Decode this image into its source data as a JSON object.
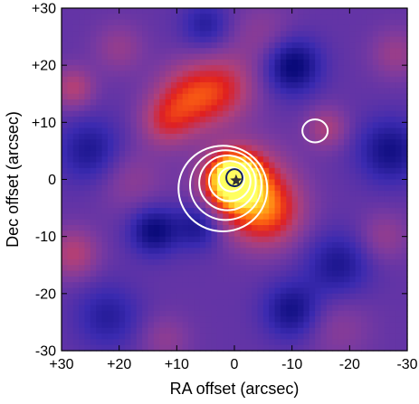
{
  "chart_data": {
    "type": "heatmap",
    "title": "",
    "xlabel": "RA offset (arcsec)",
    "ylabel": "Dec offset (arcsec)",
    "xlim": [
      30,
      -30
    ],
    "ylim": [
      -30,
      30
    ],
    "x_ticks": [
      30,
      20,
      10,
      0,
      -10,
      -20,
      -30
    ],
    "x_tick_labels": [
      "+30",
      "+20",
      "+10",
      "0",
      "-10",
      "-20",
      "-30"
    ],
    "y_ticks": [
      -30,
      -20,
      -10,
      0,
      10,
      20,
      30
    ],
    "y_tick_labels": [
      "-30",
      "-20",
      "-10",
      "0",
      "+10",
      "+20",
      "+30"
    ],
    "colormap": [
      "#0a0a7a",
      "#3a2ab0",
      "#7a3aa0",
      "#b0407a",
      "#e02020",
      "#ff6a10",
      "#ffc020",
      "#ffff60"
    ],
    "intensity_blobs": [
      {
        "x": 0,
        "y": 0,
        "amp": 3.2,
        "sigma": 2.8
      },
      {
        "x": -2,
        "y": -2,
        "amp": 1.4,
        "sigma": 5
      },
      {
        "x": 8,
        "y": 14,
        "amp": 1.1,
        "sigma": 4
      },
      {
        "x": 2,
        "y": 16,
        "amp": 0.9,
        "sigma": 4
      },
      {
        "x": 12,
        "y": 10,
        "amp": 0.7,
        "sigma": 3
      },
      {
        "x": -6,
        "y": -6,
        "amp": 1.0,
        "sigma": 4
      },
      {
        "x": -16,
        "y": 9,
        "amp": 0.6,
        "sigma": 2.5
      },
      {
        "x": 28,
        "y": -13,
        "amp": 0.7,
        "sigma": 3
      },
      {
        "x": 28,
        "y": 16,
        "amp": 0.7,
        "sigma": 2.5
      },
      {
        "x": 20,
        "y": 23,
        "amp": 0.4,
        "sigma": 3
      },
      {
        "x": -28,
        "y": 22,
        "amp": 0.45,
        "sigma": 3
      },
      {
        "x": -26,
        "y": -10,
        "amp": 0.4,
        "sigma": 3
      },
      {
        "x": 18,
        "y": 0,
        "amp": 0.35,
        "sigma": 4
      },
      {
        "x": -18,
        "y": -26,
        "amp": 0.3,
        "sigma": 4
      },
      {
        "x": 12,
        "y": -28,
        "amp": 0.35,
        "sigma": 3
      },
      {
        "x": -5,
        "y": 25,
        "amp": 0.35,
        "sigma": 4
      },
      {
        "x": 6,
        "y": -8,
        "amp": -0.7,
        "sigma": 3
      },
      {
        "x": 14,
        "y": -9,
        "amp": -0.8,
        "sigma": 3
      },
      {
        "x": -10,
        "y": 20,
        "amp": -0.9,
        "sigma": 3.5
      },
      {
        "x": 25,
        "y": 5,
        "amp": -0.6,
        "sigma": 4
      },
      {
        "x": -27,
        "y": 5,
        "amp": -0.7,
        "sigma": 4
      },
      {
        "x": -18,
        "y": -15,
        "amp": -0.6,
        "sigma": 4
      },
      {
        "x": -10,
        "y": -23,
        "amp": -0.7,
        "sigma": 3.5
      },
      {
        "x": 5,
        "y": 27,
        "amp": -0.5,
        "sigma": 3
      },
      {
        "x": 22,
        "y": -24,
        "amp": -0.5,
        "sigma": 4
      }
    ],
    "contours": [
      {
        "cx": 0.5,
        "cy": 0.0,
        "rx": 2.2,
        "ry": 2.1,
        "color": "#ffffff"
      },
      {
        "cx": 0.8,
        "cy": -0.3,
        "rx": 3.6,
        "ry": 3.5,
        "color": "#ffffff"
      },
      {
        "cx": 1.2,
        "cy": -0.6,
        "rx": 4.9,
        "ry": 4.8,
        "color": "#ffffff"
      },
      {
        "cx": 1.5,
        "cy": -1.0,
        "rx": 6.2,
        "ry": 6.1,
        "color": "#ffffff"
      },
      {
        "cx": 2.0,
        "cy": -1.6,
        "rx": 7.7,
        "ry": 7.5,
        "color": "#ffffff"
      },
      {
        "cx": -14,
        "cy": 8.5,
        "rx": 2.2,
        "ry": 2.0,
        "color": "#ffffff"
      },
      {
        "cx": 0.0,
        "cy": 0.3,
        "rx": 1.4,
        "ry": 1.5,
        "color": "#102060"
      }
    ],
    "source_marker": {
      "type": "star",
      "x": -0.3,
      "y": -0.2,
      "color": "#333333"
    }
  }
}
